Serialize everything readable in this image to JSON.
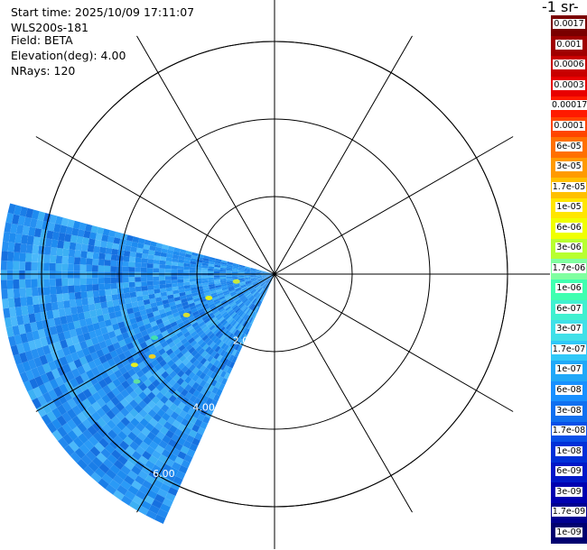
{
  "header": {
    "start_time": "Start time: 2025/10/09 17:11:07",
    "instrument": "WLS200s-181",
    "field": "Field: BETA",
    "elevation": "Elevation(deg): 4.00",
    "nrays": "NRays: 120"
  },
  "colorbar": {
    "title": "-1 sr-",
    "labels": [
      "0.0017",
      "0.001",
      "0.0006",
      "0.0003",
      "0.00017",
      "0.0001",
      "6e-05",
      "3e-05",
      "1.7e-05",
      "1e-05",
      "6e-06",
      "3e-06",
      "1.7e-06",
      "1e-06",
      "6e-07",
      "3e-07",
      "1.7e-07",
      "1e-07",
      "6e-08",
      "3e-08",
      "1.7e-08",
      "1e-08",
      "6e-09",
      "3e-09",
      "1.7e-09",
      "1e-09"
    ],
    "colors": [
      "#7a0000",
      "#a00000",
      "#c80000",
      "#e80000",
      "#ff1a00",
      "#ff4500",
      "#ff7000",
      "#ff9a00",
      "#ffc000",
      "#ffe600",
      "#f0ff00",
      "#b8ff30",
      "#80ffa0",
      "#40ffb0",
      "#40f0d0",
      "#40e0e8",
      "#30c8f8",
      "#20a8f8",
      "#1890ff",
      "#1070f0",
      "#0850e8",
      "#0030d8",
      "#0018c8",
      "#0000b0",
      "#000090",
      "#000070"
    ]
  },
  "chart_data": {
    "type": "polar",
    "title": "",
    "range_rings": [
      "2.00",
      "4.00",
      "6.00"
    ],
    "range_ring_values": [
      2,
      4,
      6
    ],
    "spokes_deg": [
      0,
      30,
      60,
      90,
      120,
      150,
      180,
      210,
      240,
      270,
      300,
      330
    ],
    "sector_az_deg": [
      204,
      285
    ],
    "sector_max_range": 7.05,
    "field": "BETA",
    "background_value": "1e-07"
  }
}
